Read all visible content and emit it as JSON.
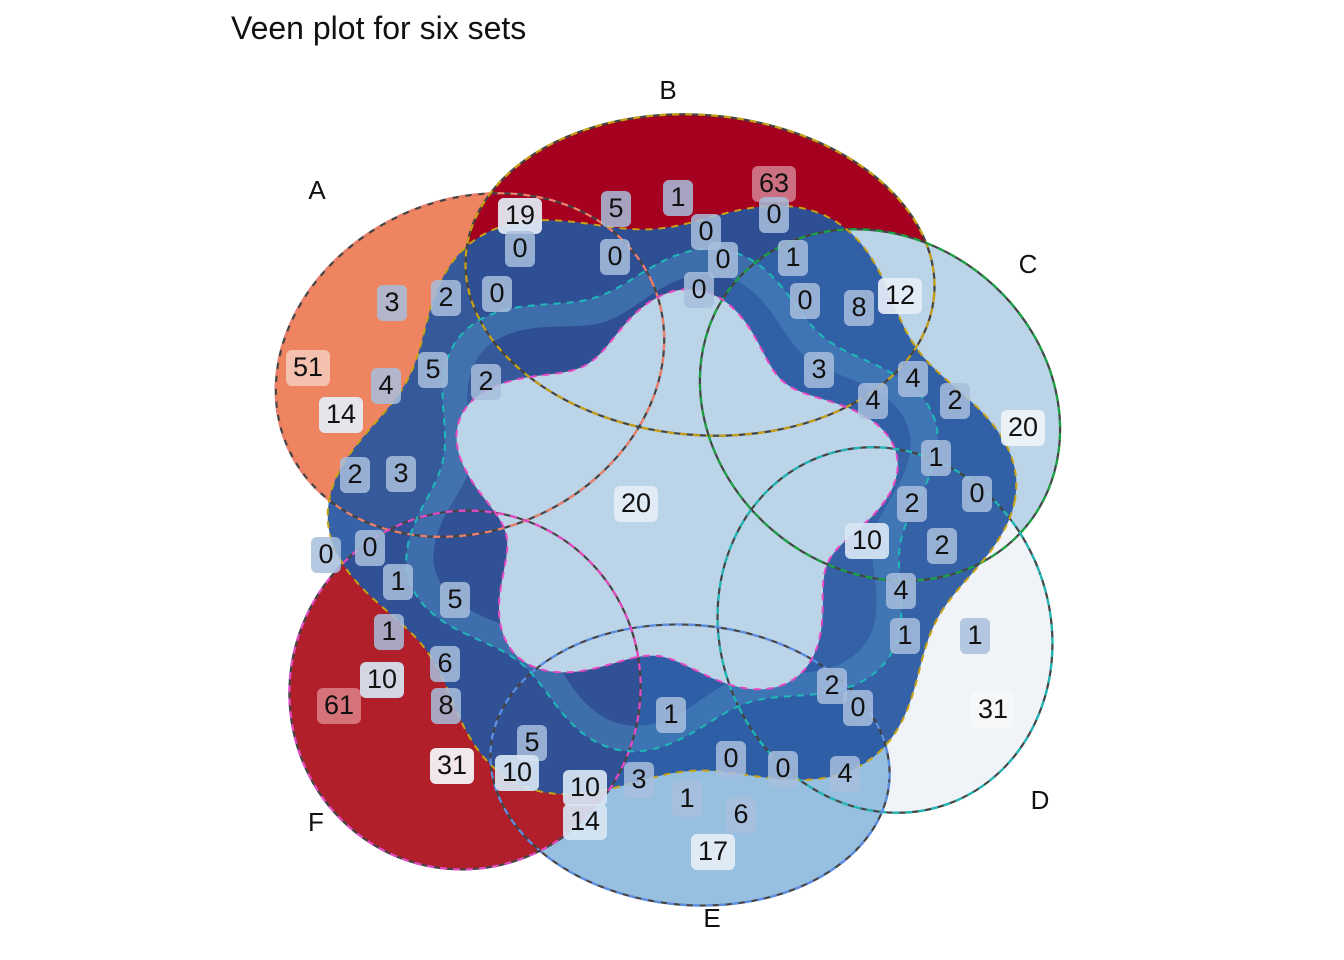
{
  "chart_data": {
    "type": "venn",
    "title": "Veen plot for six sets",
    "sets": [
      "A",
      "B",
      "C",
      "D",
      "E",
      "F"
    ],
    "set_colors": {
      "A": "#ee8560",
      "B": "#a60021",
      "C": "#bcd4e8",
      "D": "#f0f3f7",
      "E": "#97bfe0",
      "F": "#b1202a"
    },
    "border_colors": [
      "#f07f6b",
      "#c8a214",
      "#1aa342",
      "#1fb8b8",
      "#5b8fe8",
      "#e649c2"
    ],
    "region_counts": [
      {
        "id": "A_only",
        "count": 51
      },
      {
        "id": "B_only",
        "count": 63
      },
      {
        "id": "C_only",
        "count": 20
      },
      {
        "id": "D_only",
        "count": 31
      },
      {
        "id": "E_only",
        "count": 17
      },
      {
        "id": "F_only",
        "count": 61
      },
      {
        "id": "center",
        "count": 20
      },
      {
        "id": "r1",
        "count": 19
      },
      {
        "id": "r2",
        "count": 0
      },
      {
        "id": "r3",
        "count": 5
      },
      {
        "id": "r4",
        "count": 1
      },
      {
        "id": "r5",
        "count": 0
      },
      {
        "id": "r6",
        "count": 0
      },
      {
        "id": "r7",
        "count": 0
      },
      {
        "id": "r8",
        "count": 0
      },
      {
        "id": "r9",
        "count": 1
      },
      {
        "id": "r10",
        "count": 0
      },
      {
        "id": "r11",
        "count": 0
      },
      {
        "id": "r12",
        "count": 3
      },
      {
        "id": "r13",
        "count": 2
      },
      {
        "id": "r14",
        "count": 0
      },
      {
        "id": "r15",
        "count": 8
      },
      {
        "id": "r16",
        "count": 12
      },
      {
        "id": "r17",
        "count": 5
      },
      {
        "id": "r18",
        "count": 4
      },
      {
        "id": "r19",
        "count": 2
      },
      {
        "id": "r20",
        "count": 3
      },
      {
        "id": "r21",
        "count": 4
      },
      {
        "id": "r22",
        "count": 4
      },
      {
        "id": "r23",
        "count": 2
      },
      {
        "id": "r24",
        "count": 14
      },
      {
        "id": "r25",
        "count": 2
      },
      {
        "id": "r26",
        "count": 3
      },
      {
        "id": "r27",
        "count": 1
      },
      {
        "id": "r28",
        "count": 0
      },
      {
        "id": "r29",
        "count": 2
      },
      {
        "id": "r30",
        "count": 2
      },
      {
        "id": "r31",
        "count": 10
      },
      {
        "id": "r32",
        "count": 0
      },
      {
        "id": "r33",
        "count": 0
      },
      {
        "id": "r34",
        "count": 1
      },
      {
        "id": "r35",
        "count": 5
      },
      {
        "id": "r36",
        "count": 4
      },
      {
        "id": "r37",
        "count": 1
      },
      {
        "id": "r38",
        "count": 1
      },
      {
        "id": "r39",
        "count": 1
      },
      {
        "id": "r40",
        "count": 6
      },
      {
        "id": "r41",
        "count": 10
      },
      {
        "id": "r42",
        "count": 8
      },
      {
        "id": "r43",
        "count": 2
      },
      {
        "id": "r44",
        "count": 0
      },
      {
        "id": "r45",
        "count": 1
      },
      {
        "id": "r46",
        "count": 5
      },
      {
        "id": "r47",
        "count": 31
      },
      {
        "id": "r48",
        "count": 10
      },
      {
        "id": "r49",
        "count": 0
      },
      {
        "id": "r50",
        "count": 0
      },
      {
        "id": "r51",
        "count": 4
      },
      {
        "id": "r52",
        "count": 10
      },
      {
        "id": "r53",
        "count": 3
      },
      {
        "id": "r54",
        "count": 1
      },
      {
        "id": "r55",
        "count": 6
      },
      {
        "id": "r56",
        "count": 14
      }
    ]
  }
}
